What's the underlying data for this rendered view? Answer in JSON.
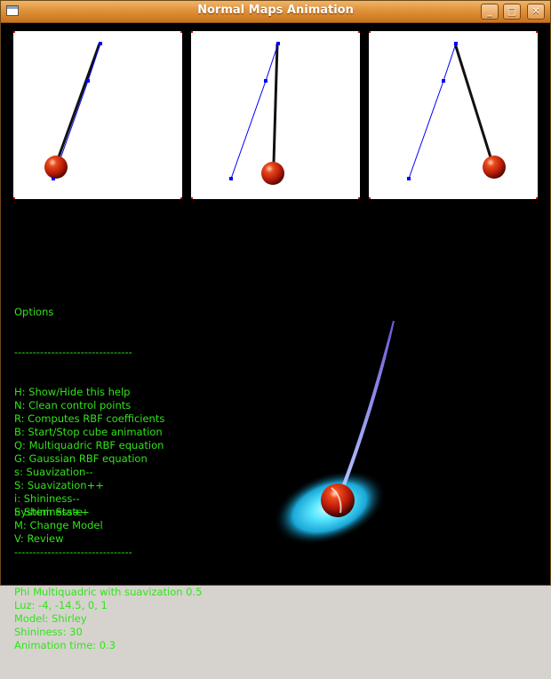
{
  "window": {
    "title": "Normal Maps Animation",
    "buttons": {
      "minimize": "_",
      "maximize": "□",
      "close": "✕"
    }
  },
  "options": {
    "heading": "Options",
    "separator": "--------------------------------",
    "items": [
      "H: Show/Hide this help",
      "N: Clean control points",
      "R: Computes RBF coefficients",
      "B: Start/Stop cube animation",
      "Q: Multiquadric RBF equation",
      "G: Gaussian RBF equation",
      "s: Suavization--",
      "S: Suavization++",
      "i: Shininess--",
      "I: Shininess++",
      "M: Change Model",
      "V: Review"
    ]
  },
  "system_state": {
    "heading": "System State",
    "separator": "--------------------------------",
    "lines": [
      "Phi Multiquadric with suavization 0.5",
      "Luz: -4, -14.5, 0, 1",
      "Model: Shirley",
      "Shininess: 30",
      "Animation time: 0.3"
    ]
  },
  "colors": {
    "text": "#33e21b",
    "ball": "#d4260d",
    "control_line": "#0000ff",
    "glow": "#29d8ff"
  },
  "icons": {
    "app": "window-icon",
    "minimize": "minimize-icon",
    "maximize": "maximize-icon",
    "close": "close-icon"
  }
}
